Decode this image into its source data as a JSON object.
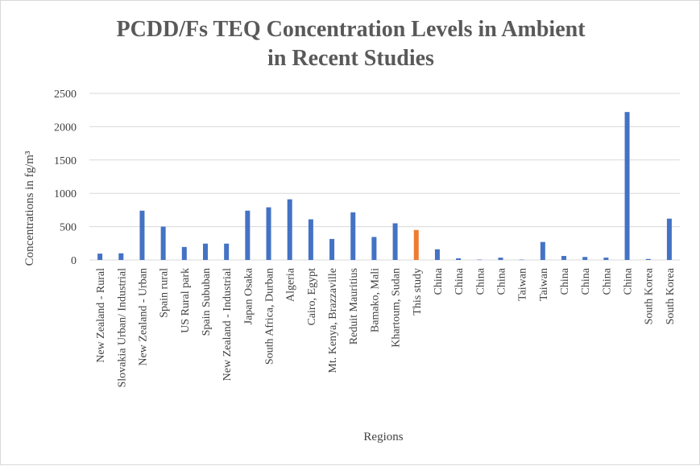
{
  "chart_data": {
    "type": "bar",
    "title": [
      "PCDD/Fs TEQ Concentration Levels in Ambient",
      "in Recent Studies"
    ],
    "xlabel": "Regions",
    "ylabel": "Concentrations in fg/m³",
    "ylim": [
      0,
      2500
    ],
    "yticks": [
      0,
      500,
      1000,
      1500,
      2000,
      2500
    ],
    "grid": true,
    "legend": "none",
    "categories": [
      "New Zealand - Rural",
      "Slovakia Urban/ Industrial",
      "New Zealand - Urban",
      "Spain rural",
      "US Rural park",
      "Spain Sububan",
      "New Zealand - Industrial",
      "Japan Osaka",
      "South Africa, Durban",
      "Algeria",
      "Cairo, Egypt",
      "Mt. Kenya, Brazzaville",
      "Reduit Mauritius",
      "Bamako, Mali",
      "Khartoum, Sudan",
      "This study",
      "China",
      "China",
      "China",
      "China",
      "Taiwan",
      "Taiwan",
      "China",
      "China",
      "China",
      "China",
      "South Korea",
      "South Korea"
    ],
    "values": [
      95,
      100,
      740,
      500,
      195,
      245,
      245,
      740,
      790,
      910,
      610,
      315,
      715,
      345,
      550,
      450,
      160,
      25,
      5,
      35,
      5,
      270,
      60,
      45,
      35,
      2220,
      15,
      620
    ],
    "highlight_index": 15,
    "colors": {
      "bar": "#4472c4",
      "highlight": "#ed7d31",
      "grid": "#d9d9d9",
      "text": "#404040",
      "title": "#595959"
    }
  }
}
